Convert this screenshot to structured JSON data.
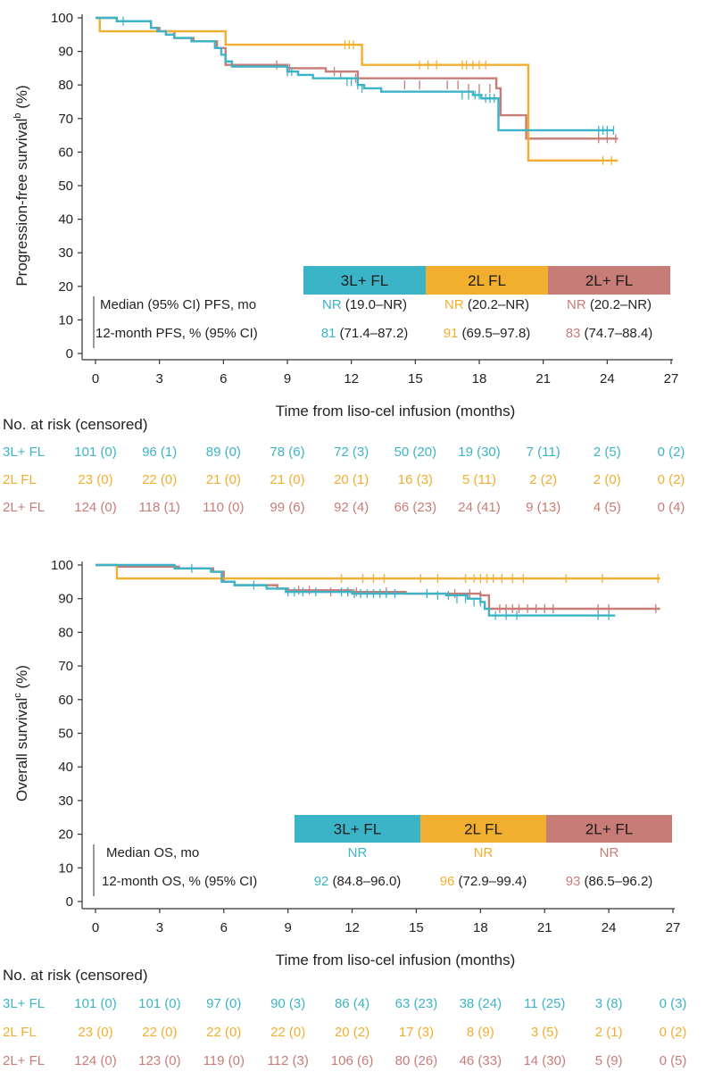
{
  "colors": {
    "l3": "#3cb4c8",
    "l2": "#f2ae2e",
    "l2plus": "#c87c78",
    "axis": "#333333",
    "text": "#222222"
  },
  "chart_data": [
    {
      "type": "line",
      "title": "",
      "ylabel": "Progression-free survival",
      "ylabel_sup": "b",
      "ylabel_unit": "(%)",
      "xlabel": "Time from liso-cel infusion (months)",
      "xlim": [
        0,
        27
      ],
      "ylim": [
        0,
        100
      ],
      "xticks": [
        0,
        3,
        6,
        9,
        12,
        15,
        18,
        21,
        24,
        27
      ],
      "yticks": [
        0,
        10,
        20,
        30,
        40,
        50,
        60,
        70,
        80,
        90,
        100
      ],
      "series": [
        {
          "name": "3L+ FL",
          "key": "l3",
          "x": [
            0,
            1.0,
            1.5,
            2.6,
            2.9,
            3.3,
            3.7,
            4.5,
            5.6,
            5.9,
            6.1,
            6.4,
            8.8,
            9.0,
            9.5,
            10.2,
            11.0,
            12.3,
            12.6,
            13.4,
            15.0,
            17.7,
            18.1,
            18.9,
            24.3
          ],
          "y": [
            100,
            99,
            99,
            97,
            96,
            95,
            94,
            93,
            91,
            89,
            87,
            85.5,
            85.5,
            84,
            83,
            82,
            82,
            80,
            79,
            78,
            78,
            77,
            76,
            66.5,
            66.5
          ],
          "censor_x": [
            1.3,
            9.0,
            9.2,
            11.8,
            12.0,
            12.3,
            12.5,
            17.2,
            17.5,
            17.8,
            18.0,
            18.3,
            18.5,
            18.7,
            23.6,
            23.8,
            24.0,
            24.3
          ],
          "censor_y": [
            99,
            84,
            84,
            81,
            81,
            80,
            79,
            77,
            77,
            77,
            77,
            76,
            76,
            76,
            66.5,
            66.5,
            66.5,
            66.5
          ]
        },
        {
          "name": "2L FL",
          "key": "l2",
          "x": [
            0,
            0.2,
            5.9,
            6.1,
            12.3,
            12.5,
            20.2,
            20.3,
            24.5
          ],
          "y": [
            100,
            96,
            96,
            92,
            92,
            86,
            86,
            57.5,
            57.5
          ],
          "censor_x": [
            11.7,
            11.9,
            12.1,
            15.2,
            15.6,
            16.0,
            17.2,
            17.4,
            17.7,
            18.0,
            18.3,
            23.8,
            24.2
          ],
          "censor_y": [
            92,
            92,
            92,
            86,
            86,
            86,
            86,
            86,
            86,
            86,
            86,
            57.5,
            57.5
          ]
        },
        {
          "name": "2L+ FL",
          "key": "l2plus",
          "x": [
            0,
            1.0,
            2.6,
            3.0,
            3.7,
            4.6,
            5.7,
            6.1,
            8.9,
            9.0,
            10.8,
            12.3,
            18.8,
            19.0,
            20.2,
            24.5
          ],
          "y": [
            100,
            99,
            97,
            96,
            94,
            93,
            91,
            86,
            86,
            85,
            84,
            82,
            79,
            71,
            64,
            64
          ],
          "censor_x": [
            8.5,
            9.1,
            11.2,
            11.5,
            12.2,
            14.5,
            15.2,
            16.5,
            17.0,
            17.5,
            18.0,
            18.5,
            23.6,
            24.0,
            24.4
          ],
          "censor_y": [
            86,
            85,
            84,
            83,
            82,
            80,
            80,
            80,
            80,
            79,
            79,
            79,
            64,
            64,
            64
          ]
        }
      ],
      "table": {
        "labels": [
          "Median (95% CI) PFS, mo",
          "12-month PFS, % (95% CI)"
        ],
        "groups": [
          {
            "name": "3L+ FL",
            "key": "l3",
            "row1_lead": "NR",
            "row1_rest": " (19.0–NR)",
            "row2_lead": "81",
            "row2_rest": " (71.4–87.2)"
          },
          {
            "name": "2L FL",
            "key": "l2",
            "row1_lead": "NR",
            "row1_rest": " (20.2–NR)",
            "row2_lead": "91",
            "row2_rest": " (69.5–97.8)"
          },
          {
            "name": "2L+ FL",
            "key": "l2plus",
            "row1_lead": "NR",
            "row1_rest": " (20.2–NR)",
            "row2_lead": "83",
            "row2_rest": " (74.7–88.4)"
          }
        ]
      },
      "risk": {
        "title": "No. at risk (censored)",
        "rows": [
          {
            "label": "3L+ FL",
            "key": "l3",
            "values": [
              "101 (0)",
              "96 (1)",
              "89 (0)",
              "78 (6)",
              "72 (3)",
              "50 (20)",
              "19 (30)",
              "7 (11)",
              "2 (5)",
              "0 (2)"
            ]
          },
          {
            "label": "2L FL",
            "key": "l2",
            "values": [
              "23 (0)",
              "22 (0)",
              "21 (0)",
              "21 (0)",
              "20 (1)",
              "16 (3)",
              "5 (11)",
              "2 (2)",
              "2 (0)",
              "0 (2)"
            ]
          },
          {
            "label": "2L+ FL",
            "key": "l2plus",
            "values": [
              "124 (0)",
              "118 (1)",
              "110 (0)",
              "99 (6)",
              "92 (4)",
              "66 (23)",
              "24 (41)",
              "9 (13)",
              "4 (5)",
              "0 (4)"
            ]
          }
        ]
      }
    },
    {
      "type": "line",
      "title": "",
      "ylabel": "Overall survival",
      "ylabel_sup": "c",
      "ylabel_unit": "(%)",
      "xlabel": "Time from liso-cel infusion (months)",
      "xlim": [
        0,
        27
      ],
      "ylim": [
        0,
        100
      ],
      "xticks": [
        0,
        3,
        6,
        9,
        12,
        15,
        18,
        21,
        24,
        27
      ],
      "yticks": [
        0,
        10,
        20,
        30,
        40,
        50,
        60,
        70,
        80,
        90,
        100
      ],
      "series": [
        {
          "name": "3L+ FL",
          "key": "l3",
          "x": [
            0,
            1.0,
            3.7,
            5.4,
            5.9,
            6.5,
            8.0,
            8.9,
            10.0,
            12.0,
            15.0,
            16.4,
            17.4,
            18.0,
            18.2,
            18.4,
            24.3
          ],
          "y": [
            100,
            100,
            99,
            98,
            95,
            94,
            93,
            92,
            92,
            91.5,
            91.5,
            91,
            90,
            89,
            87,
            85,
            85
          ],
          "censor_x": [
            4.5,
            7.4,
            9.0,
            9.3,
            9.7,
            10.3,
            11.5,
            11.8,
            12.1,
            12.4,
            12.7,
            13.0,
            13.3,
            13.6,
            14.0,
            15.5,
            16.0,
            16.5,
            16.9,
            17.3,
            17.7,
            18.0,
            18.7,
            19.2,
            19.7,
            23.5,
            24.0
          ],
          "censor_y": [
            99,
            94,
            92,
            92,
            92,
            92,
            92,
            92,
            91.5,
            91.5,
            91.5,
            91.5,
            91.5,
            91.5,
            91.5,
            91.5,
            91,
            91,
            90,
            90,
            89,
            89,
            85,
            85,
            85,
            85,
            85
          ]
        },
        {
          "name": "2L FL",
          "key": "l2",
          "x": [
            0,
            0.9,
            1.0,
            26.4
          ],
          "y": [
            100,
            100,
            96,
            96
          ],
          "censor_x": [
            11.5,
            12.5,
            13.0,
            13.5,
            15.2,
            16.0,
            17.3,
            17.7,
            18.0,
            18.3,
            18.6,
            19.0,
            19.5,
            20.0,
            22.0,
            23.7,
            26.3
          ],
          "censor_y": [
            96,
            96,
            96,
            96,
            96,
            96,
            96,
            96,
            96,
            96,
            96,
            96,
            96,
            96,
            96,
            96,
            96
          ]
        },
        {
          "name": "2L+ FL",
          "key": "l2plus",
          "x": [
            0,
            1.0,
            3.9,
            5.5,
            6.0,
            6.5,
            8.5,
            9.0,
            12.0,
            14.5,
            16.0,
            17.0,
            18.0,
            18.4,
            26.4
          ],
          "y": [
            100,
            99.5,
            99,
            98,
            95,
            94,
            93,
            92.5,
            92,
            91.5,
            91.5,
            91.5,
            91,
            87,
            87
          ],
          "censor_x": [
            9.5,
            10.0,
            11.0,
            11.8,
            12.2,
            13.6,
            15.5,
            16.8,
            17.5,
            18.0,
            18.9,
            19.2,
            19.5,
            19.8,
            20.2,
            20.6,
            21.0,
            21.4,
            23.5,
            24.0,
            26.2
          ],
          "censor_y": [
            92.5,
            92.5,
            92,
            92,
            92,
            92,
            91.5,
            91.5,
            91.5,
            91,
            87,
            87,
            87,
            87,
            87,
            87,
            87,
            87,
            87,
            87,
            87
          ]
        }
      ],
      "table": {
        "labels": [
          "Median OS, mo",
          "12-month OS, % (95% CI)"
        ],
        "groups": [
          {
            "name": "3L+ FL",
            "key": "l3",
            "row1_lead": "NR",
            "row1_rest": "",
            "row2_lead": "92",
            "row2_rest": " (84.8–96.0)"
          },
          {
            "name": "2L FL",
            "key": "l2",
            "row1_lead": "NR",
            "row1_rest": "",
            "row2_lead": "96",
            "row2_rest": " (72.9–99.4)"
          },
          {
            "name": "2L+ FL",
            "key": "l2plus",
            "row1_lead": "NR",
            "row1_rest": "",
            "row2_lead": "93",
            "row2_rest": " (86.5–96.2)"
          }
        ]
      },
      "risk": {
        "title": "No. at risk (censored)",
        "rows": [
          {
            "label": "3L+ FL",
            "key": "l3",
            "values": [
              "101 (0)",
              "101 (0)",
              "97 (0)",
              "90 (3)",
              "86 (4)",
              "63 (23)",
              "38 (24)",
              "11 (25)",
              "3 (8)",
              "0 (3)"
            ]
          },
          {
            "label": "2L FL",
            "key": "l2",
            "values": [
              "23 (0)",
              "22 (0)",
              "22 (0)",
              "22 (0)",
              "20 (2)",
              "17 (3)",
              "8 (9)",
              "3 (5)",
              "2 (1)",
              "0 (2)"
            ]
          },
          {
            "label": "2L+ FL",
            "key": "l2plus",
            "values": [
              "124 (0)",
              "123 (0)",
              "119 (0)",
              "112 (3)",
              "106 (6)",
              "80 (26)",
              "46 (33)",
              "14 (30)",
              "5 (9)",
              "0 (5)"
            ]
          }
        ]
      }
    }
  ]
}
